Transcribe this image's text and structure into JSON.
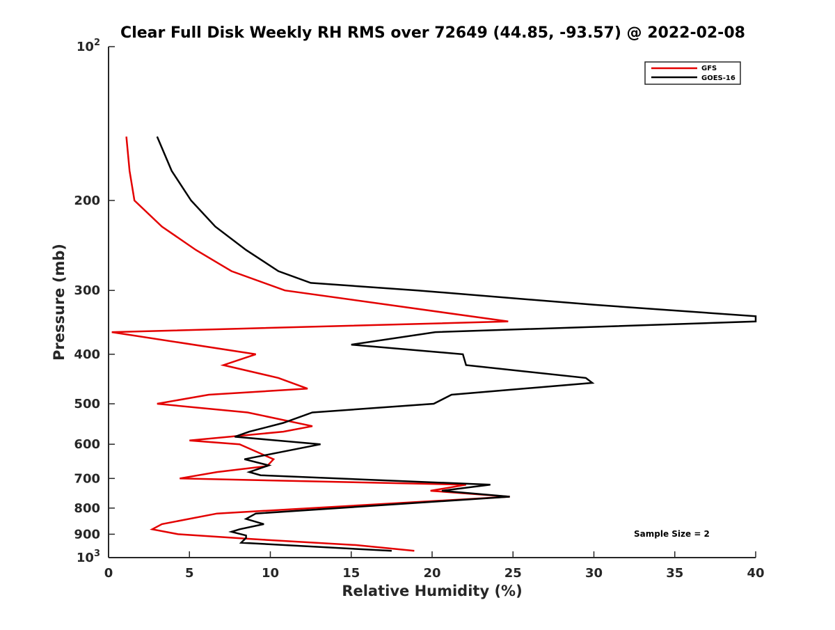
{
  "chart_data": {
    "type": "line",
    "title": "Clear Full Disk Weekly RH RMS over 72649 (44.85, -93.57) @ 2022-02-08",
    "xlabel": "Relative Humidity (%)",
    "ylabel": "Pressure (mb)",
    "xlim": [
      0,
      40
    ],
    "ylim": [
      100,
      1000
    ],
    "y_scale": "log",
    "y_reversed": true,
    "x_ticks": [
      "0",
      "5",
      "10",
      "15",
      "20",
      "25",
      "30",
      "35",
      "40"
    ],
    "y_ticks": [
      {
        "value": 100,
        "base": "10",
        "exp": "2"
      },
      {
        "value": 200,
        "label": "200"
      },
      {
        "value": 300,
        "label": "300"
      },
      {
        "value": 400,
        "label": "400"
      },
      {
        "value": 500,
        "label": "500"
      },
      {
        "value": 600,
        "label": "600"
      },
      {
        "value": 700,
        "label": "700"
      },
      {
        "value": 800,
        "label": "800"
      },
      {
        "value": 900,
        "label": "900"
      },
      {
        "value": 1000,
        "base": "10",
        "exp": "3"
      }
    ],
    "legend_position": "top-right",
    "grid": false,
    "annotation": "Sample Size = 2",
    "series": [
      {
        "name": "GFS",
        "color": "#e30000",
        "points": [
          [
            1.1,
            150
          ],
          [
            1.3,
            175
          ],
          [
            1.6,
            200
          ],
          [
            3.3,
            225
          ],
          [
            5.4,
            250
          ],
          [
            7.6,
            275
          ],
          [
            10.9,
            300
          ],
          [
            24.7,
            345
          ],
          [
            0.2,
            362
          ],
          [
            9.1,
            400
          ],
          [
            7.1,
            420
          ],
          [
            10.5,
            445
          ],
          [
            12.3,
            467
          ],
          [
            6.2,
            480
          ],
          [
            3.0,
            500
          ],
          [
            8.6,
            520
          ],
          [
            12.6,
            553
          ],
          [
            10.8,
            567
          ],
          [
            5.0,
            590
          ],
          [
            8.1,
            600
          ],
          [
            10.2,
            642
          ],
          [
            9.8,
            662
          ],
          [
            6.7,
            680
          ],
          [
            4.4,
            700
          ],
          [
            22.1,
            720
          ],
          [
            19.9,
            740
          ],
          [
            24.8,
            760
          ],
          [
            6.7,
            820
          ],
          [
            3.3,
            860
          ],
          [
            2.7,
            880
          ],
          [
            4.3,
            900
          ],
          [
            8.9,
            920
          ],
          [
            15.3,
            945
          ],
          [
            18.9,
            970
          ]
        ]
      },
      {
        "name": "GOES-16",
        "color": "#000000",
        "points": [
          [
            3.0,
            150
          ],
          [
            3.9,
            175
          ],
          [
            5.1,
            200
          ],
          [
            6.6,
            225
          ],
          [
            8.5,
            250
          ],
          [
            10.5,
            275
          ],
          [
            12.5,
            290
          ],
          [
            19.1,
            300
          ],
          [
            30.0,
            320
          ],
          [
            40.0,
            337
          ],
          [
            40.0,
            345
          ],
          [
            20.2,
            362
          ],
          [
            15.0,
            383
          ],
          [
            21.9,
            400
          ],
          [
            22.1,
            420
          ],
          [
            29.5,
            445
          ],
          [
            29.9,
            455
          ],
          [
            21.2,
            480
          ],
          [
            20.1,
            500
          ],
          [
            12.6,
            520
          ],
          [
            10.8,
            545
          ],
          [
            8.7,
            567
          ],
          [
            7.8,
            580
          ],
          [
            13.1,
            600
          ],
          [
            8.4,
            642
          ],
          [
            9.9,
            660
          ],
          [
            8.7,
            680
          ],
          [
            9.4,
            690
          ],
          [
            23.6,
            720
          ],
          [
            20.6,
            740
          ],
          [
            24.8,
            760
          ],
          [
            9.1,
            820
          ],
          [
            8.5,
            840
          ],
          [
            9.6,
            860
          ],
          [
            8.1,
            880
          ],
          [
            7.6,
            890
          ],
          [
            8.5,
            905
          ],
          [
            8.5,
            915
          ],
          [
            8.2,
            935
          ],
          [
            17.5,
            970
          ]
        ]
      }
    ]
  }
}
